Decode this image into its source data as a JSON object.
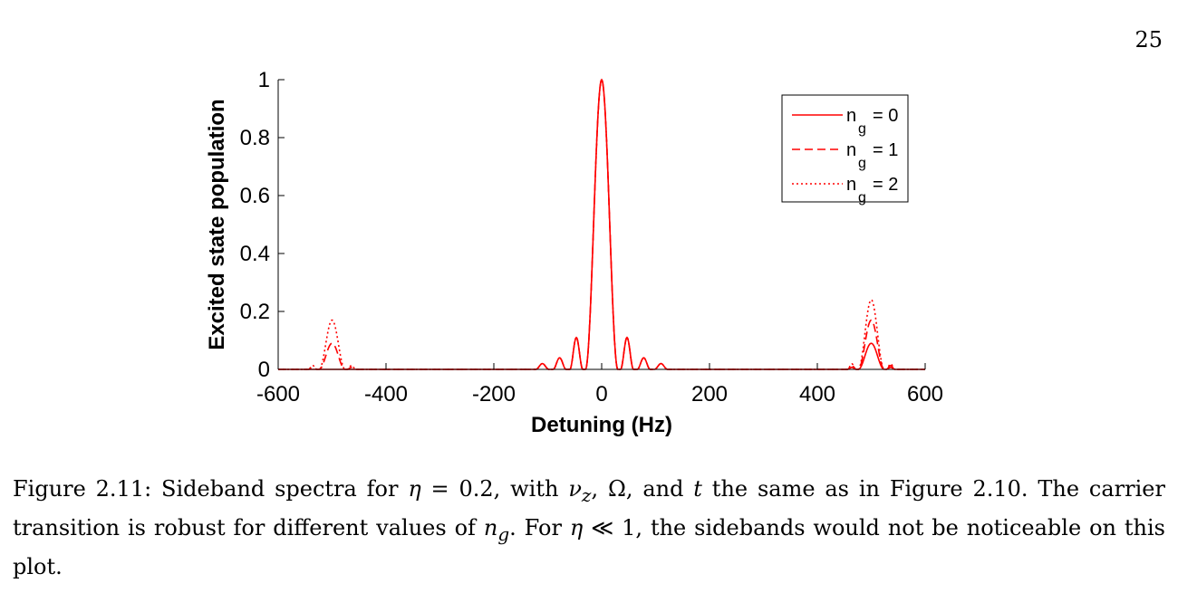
{
  "page": {
    "number": "25"
  },
  "caption": {
    "label": "Figure 2.11:",
    "p1": "Sideband spectra for",
    "eta": "η",
    "eq": "= 0.2, with",
    "nu": "ν",
    "nu_sub": "z",
    "sep1": ",",
    "omega": "Ω",
    "p2": ", and",
    "t": "t",
    "p3": "the same as in Figure 2.10. The carrier transition is robust for different values of",
    "n": "n",
    "n_sub": "g",
    "p4": ". For",
    "eta2": "η",
    "ll": "≪ 1, the sidebands would not be noticeable on this plot."
  },
  "chart_data": {
    "type": "line",
    "title": "",
    "xlabel": "Detuning (Hz)",
    "ylabel": "Excited state population",
    "xlim": [
      -600,
      600
    ],
    "ylim": [
      0,
      1
    ],
    "xticks": [
      -600,
      -400,
      -200,
      0,
      200,
      400,
      600
    ],
    "yticks": [
      0,
      0.2,
      0.4,
      0.6,
      0.8,
      1
    ],
    "ytick_labels": [
      "0",
      "0.2",
      "0.4",
      "0.6",
      "0.8",
      "1"
    ],
    "grid": false,
    "legend_position": "top-right",
    "color": "#ff0000",
    "carrier": {
      "center": 0,
      "peak": 1.0,
      "first_zero": 30,
      "side_lobes": [
        [
          -47,
          0.11
        ],
        [
          47,
          0.11
        ],
        [
          -78,
          0.04
        ],
        [
          78,
          0.04
        ],
        [
          -110,
          0.02
        ],
        [
          110,
          0.02
        ]
      ]
    },
    "series": [
      {
        "legend_main": "n",
        "legend_sub": "g",
        "legend_value": "= 0",
        "style": "solid",
        "sideband_peaks": {
          "-500": 0.0,
          "500": 0.09
        }
      },
      {
        "legend_main": "n",
        "legend_sub": "g",
        "legend_value": "= 1",
        "style": "dashed",
        "sideband_peaks": {
          "-500": 0.09,
          "500": 0.17
        }
      },
      {
        "legend_main": "n",
        "legend_sub": "g",
        "legend_value": "= 2",
        "style": "dotted",
        "sideband_peaks": {
          "-500": 0.17,
          "500": 0.24
        }
      }
    ]
  }
}
